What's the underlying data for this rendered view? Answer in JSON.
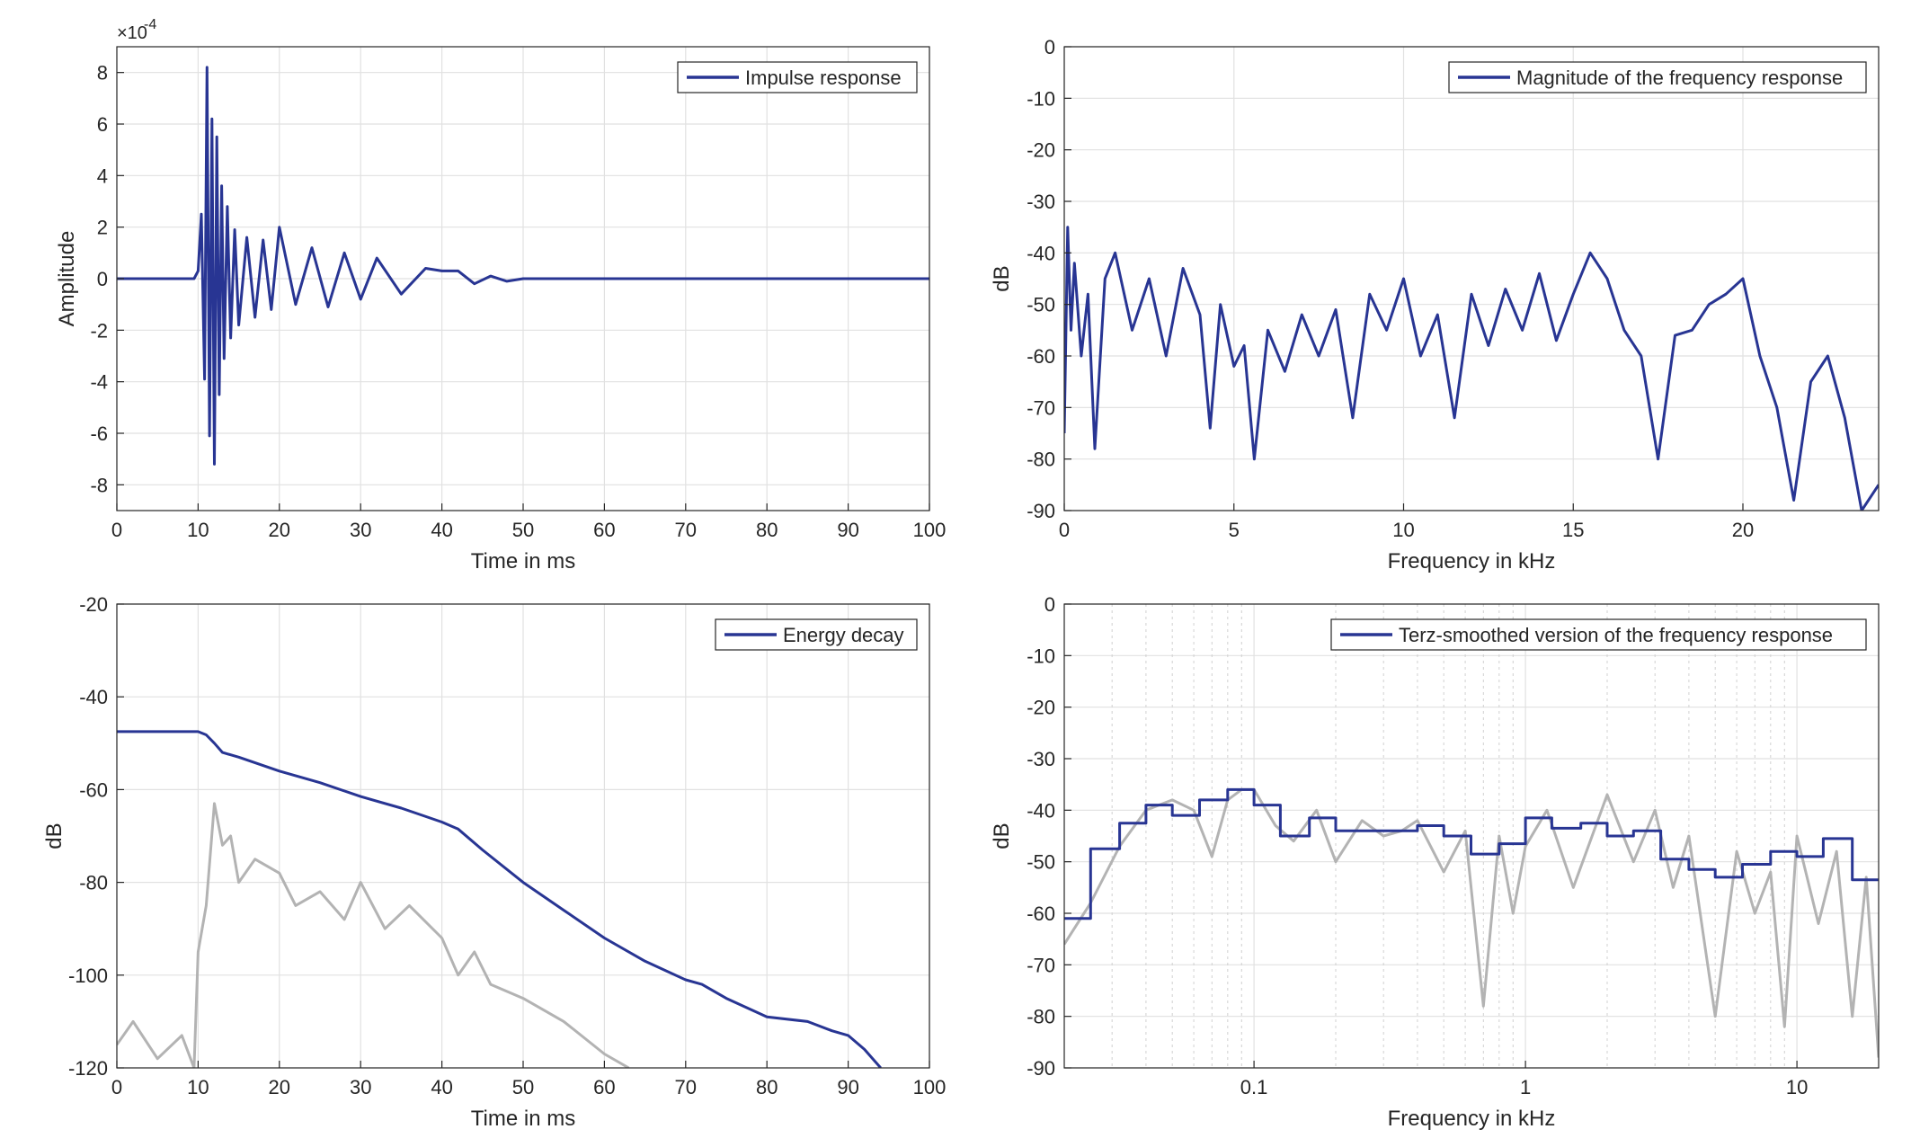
{
  "colors": {
    "series": "#283593",
    "background_series": "#b3b3b3",
    "grid": "#e1e1e1",
    "axes": "#262626"
  },
  "chart_data": [
    {
      "type": "line",
      "legend": "Impulse response",
      "legend_position": "top-right",
      "xlabel": "Time in ms",
      "ylabel": "Amplitude",
      "exponent_label": "×10",
      "exponent_value": "-4",
      "xlim": [
        0,
        100
      ],
      "ylim": [
        -9,
        9
      ],
      "grid": true,
      "xticks": [
        "0",
        "10",
        "20",
        "30",
        "40",
        "50",
        "60",
        "70",
        "80",
        "90",
        "100"
      ],
      "yticks": [
        "-8",
        "-6",
        "-4",
        "-2",
        "0",
        "2",
        "4",
        "6",
        "8"
      ],
      "series": [
        {
          "x": [
            0,
            9.5,
            10,
            10.4,
            10.8,
            11.1,
            11.4,
            11.7,
            12,
            12.3,
            12.6,
            12.9,
            13.2,
            13.6,
            14,
            14.5,
            15,
            16,
            17,
            18,
            19,
            20,
            22,
            24,
            26,
            28,
            30,
            32,
            35,
            38,
            40,
            42,
            44,
            46,
            48,
            50,
            55,
            60,
            70,
            80,
            90,
            100
          ],
          "y": [
            0,
            0,
            0.3,
            2.5,
            -3.9,
            8.2,
            -6.1,
            6.2,
            -7.2,
            5.5,
            -4.5,
            3.6,
            -3.1,
            2.8,
            -2.3,
            1.9,
            -1.8,
            1.6,
            -1.5,
            1.5,
            -1.2,
            2,
            -1,
            1.2,
            -1.1,
            1,
            -0.8,
            0.8,
            -0.6,
            0.4,
            0.3,
            0.3,
            -0.2,
            0.1,
            -0.1,
            0,
            0,
            0,
            0,
            0,
            0,
            0
          ]
        }
      ]
    },
    {
      "type": "line",
      "legend": "Magnitude of the frequency response",
      "legend_position": "top-right",
      "xlabel": "Frequency in kHz",
      "ylabel": "dB",
      "xlim": [
        0,
        24
      ],
      "ylim": [
        -90,
        0
      ],
      "grid": true,
      "xticks": [
        "0",
        "5",
        "10",
        "15",
        "20"
      ],
      "yticks": [
        "0",
        "-10",
        "-20",
        "-30",
        "-40",
        "-50",
        "-60",
        "-70",
        "-80",
        "-90"
      ],
      "series": [
        {
          "x": [
            0,
            0.1,
            0.2,
            0.3,
            0.5,
            0.7,
            0.9,
            1.2,
            1.5,
            2,
            2.5,
            3,
            3.5,
            4,
            4.3,
            4.6,
            5,
            5.3,
            5.6,
            6,
            6.5,
            7,
            7.5,
            8,
            8.5,
            9,
            9.5,
            10,
            10.5,
            11,
            11.5,
            12,
            12.5,
            13,
            13.5,
            14,
            14.5,
            15,
            15.5,
            16,
            16.5,
            17,
            17.5,
            18,
            18.5,
            19,
            19.5,
            20,
            20.5,
            21,
            21.5,
            22,
            22.5,
            23,
            23.5,
            24
          ],
          "y": [
            -75,
            -35,
            -55,
            -42,
            -60,
            -48,
            -78,
            -45,
            -40,
            -55,
            -45,
            -60,
            -43,
            -52,
            -74,
            -50,
            -62,
            -58,
            -80,
            -55,
            -63,
            -52,
            -60,
            -51,
            -72,
            -48,
            -55,
            -45,
            -60,
            -52,
            -72,
            -48,
            -58,
            -47,
            -55,
            -44,
            -57,
            -48,
            -40,
            -45,
            -55,
            -60,
            -80,
            -56,
            -55,
            -50,
            -48,
            -45,
            -60,
            -70,
            -88,
            -65,
            -60,
            -72,
            -90,
            -85
          ]
        }
      ]
    },
    {
      "type": "line",
      "legend": "Energy decay",
      "legend_position": "top-right",
      "xlabel": "Time in ms",
      "ylabel": "dB",
      "xlim": [
        0,
        100
      ],
      "ylim": [
        -120,
        -20
      ],
      "grid": true,
      "xticks": [
        "0",
        "10",
        "20",
        "30",
        "40",
        "50",
        "60",
        "70",
        "80",
        "90",
        "100"
      ],
      "yticks": [
        "-20",
        "-40",
        "-60",
        "-80",
        "-100",
        "-120"
      ],
      "series": [
        {
          "x": [
            0,
            10,
            11,
            12,
            13,
            15,
            20,
            25,
            30,
            35,
            40,
            42,
            45,
            50,
            55,
            60,
            65,
            70,
            72,
            75,
            80,
            85,
            88,
            90,
            92,
            94
          ],
          "y": [
            -47.5,
            -47.5,
            -48.2,
            -50,
            -52,
            -53,
            -56,
            -58.5,
            -61.5,
            -64,
            -67,
            -68.5,
            -73,
            -80,
            -86,
            -92,
            -97,
            -101,
            -102,
            -105,
            -109,
            -110,
            -112,
            -113,
            -116,
            -120
          ]
        },
        {
          "x": [
            0,
            2,
            5,
            8,
            9.5,
            10,
            11,
            12,
            13,
            14,
            15,
            17,
            20,
            22,
            25,
            28,
            30,
            33,
            36,
            40,
            42,
            44,
            46,
            50,
            55,
            60,
            63
          ],
          "y": [
            -115,
            -110,
            -118,
            -113,
            -120,
            -95,
            -85,
            -63,
            -72,
            -70,
            -80,
            -75,
            -78,
            -85,
            -82,
            -88,
            -80,
            -90,
            -85,
            -92,
            -100,
            -95,
            -102,
            -105,
            -110,
            -117,
            -120
          ]
        }
      ]
    },
    {
      "type": "line",
      "legend": "Terz-smoothed version of the frequency response",
      "legend_position": "top-right",
      "xlabel": "Frequency in kHz",
      "ylabel": "dB",
      "xscale": "log",
      "xlim": [
        0.02,
        20
      ],
      "ylim": [
        -90,
        0
      ],
      "grid": true,
      "xticks": [
        "0.1",
        "1",
        "10"
      ],
      "yticks": [
        "0",
        "-10",
        "-20",
        "-30",
        "-40",
        "-50",
        "-60",
        "-70",
        "-80",
        "-90"
      ],
      "series": [
        {
          "x": [
            0.02,
            0.025,
            0.025,
            0.032,
            0.032,
            0.04,
            0.04,
            0.05,
            0.05,
            0.063,
            0.063,
            0.08,
            0.08,
            0.1,
            0.1,
            0.125,
            0.125,
            0.16,
            0.16,
            0.2,
            0.2,
            0.25,
            0.25,
            0.315,
            0.315,
            0.4,
            0.4,
            0.5,
            0.5,
            0.63,
            0.63,
            0.8,
            0.8,
            1,
            1,
            1.25,
            1.25,
            1.6,
            1.6,
            2,
            2,
            2.5,
            2.5,
            3.15,
            3.15,
            4,
            4,
            5,
            5,
            6.3,
            6.3,
            8,
            8,
            10,
            10,
            12.5,
            12.5,
            16,
            16,
            20
          ],
          "y": [
            -61,
            -61,
            -47.5,
            -47.5,
            -42.5,
            -42.5,
            -39,
            -39,
            -41,
            -41,
            -38,
            -38,
            -36,
            -36,
            -39,
            -39,
            -45,
            -45,
            -41.5,
            -41.5,
            -44,
            -44,
            -44,
            -44,
            -44,
            -44,
            -43,
            -43,
            -45,
            -45,
            -48.5,
            -48.5,
            -46.5,
            -46.5,
            -41.5,
            -41.5,
            -43.5,
            -43.5,
            -42.5,
            -42.5,
            -45,
            -45,
            -44,
            -44,
            -49.5,
            -49.5,
            -51.5,
            -51.5,
            -53,
            -53,
            -50.5,
            -50.5,
            -48,
            -48,
            -49,
            -49,
            -45.5,
            -45.5,
            -53.5,
            -53.5
          ]
        },
        {
          "x": [
            0.02,
            0.025,
            0.032,
            0.04,
            0.05,
            0.06,
            0.07,
            0.08,
            0.09,
            0.1,
            0.12,
            0.14,
            0.17,
            0.2,
            0.25,
            0.3,
            0.35,
            0.4,
            0.5,
            0.6,
            0.7,
            0.8,
            0.9,
            1,
            1.2,
            1.5,
            2,
            2.5,
            3,
            3.5,
            4,
            5,
            6,
            7,
            8,
            9,
            10,
            12,
            14,
            16,
            18,
            20
          ],
          "y": [
            -66,
            -58,
            -47,
            -40,
            -38,
            -40,
            -49,
            -38,
            -36,
            -36,
            -43,
            -46,
            -40,
            -50,
            -42,
            -45,
            -44,
            -42,
            -52,
            -44,
            -78,
            -45,
            -60,
            -47,
            -40,
            -55,
            -37,
            -50,
            -40,
            -55,
            -45,
            -80,
            -48,
            -60,
            -52,
            -82,
            -45,
            -62,
            -48,
            -80,
            -53,
            -88
          ]
        }
      ]
    }
  ]
}
